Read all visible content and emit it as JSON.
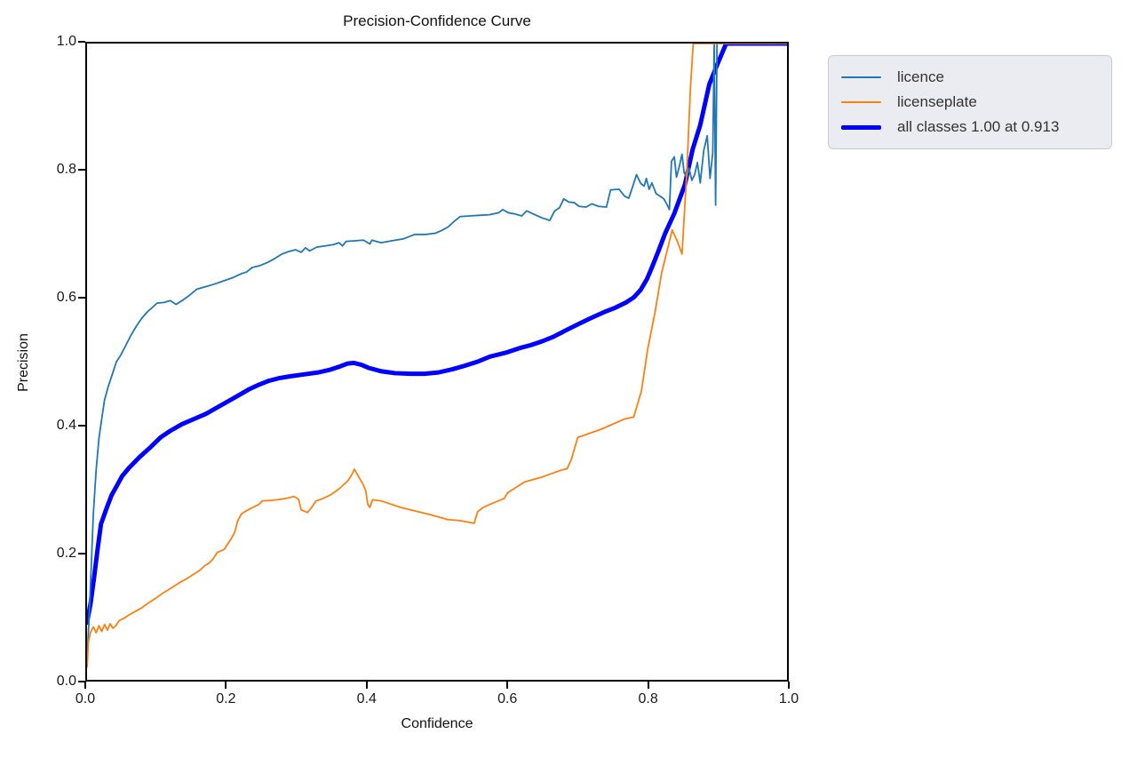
{
  "chart_data": {
    "type": "line",
    "title": "Precision-Confidence Curve",
    "xlabel": "Confidence",
    "ylabel": "Precision",
    "xlim": [
      0.0,
      1.0
    ],
    "ylim": [
      0.0,
      1.0
    ],
    "x_ticks": [
      0.0,
      0.2,
      0.4,
      0.6,
      0.8,
      1.0
    ],
    "y_ticks": [
      0.0,
      0.2,
      0.4,
      0.6,
      0.8,
      1.0
    ],
    "grid": false,
    "legend_position": "outside-top-right",
    "series": [
      {
        "name": "licence",
        "color": "#1f77b4",
        "width": 1.8,
        "points": [
          [
            0,
            0.03
          ],
          [
            0.003,
            0.1
          ],
          [
            0.006,
            0.18
          ],
          [
            0.009,
            0.26
          ],
          [
            0.013,
            0.33
          ],
          [
            0.017,
            0.38
          ],
          [
            0.021,
            0.41
          ],
          [
            0.025,
            0.44
          ],
          [
            0.03,
            0.46
          ],
          [
            0.036,
            0.48
          ],
          [
            0.042,
            0.5
          ],
          [
            0.048,
            0.51
          ],
          [
            0.055,
            0.525
          ],
          [
            0.062,
            0.54
          ],
          [
            0.07,
            0.555
          ],
          [
            0.078,
            0.568
          ],
          [
            0.086,
            0.578
          ],
          [
            0.093,
            0.585
          ],
          [
            0.1,
            0.592
          ],
          [
            0.11,
            0.593
          ],
          [
            0.119,
            0.596
          ],
          [
            0.127,
            0.59
          ],
          [
            0.136,
            0.596
          ],
          [
            0.146,
            0.604
          ],
          [
            0.157,
            0.614
          ],
          [
            0.17,
            0.618
          ],
          [
            0.182,
            0.622
          ],
          [
            0.195,
            0.627
          ],
          [
            0.208,
            0.632
          ],
          [
            0.22,
            0.638
          ],
          [
            0.228,
            0.641
          ],
          [
            0.236,
            0.648
          ],
          [
            0.247,
            0.651
          ],
          [
            0.258,
            0.656
          ],
          [
            0.268,
            0.662
          ],
          [
            0.278,
            0.669
          ],
          [
            0.288,
            0.673
          ],
          [
            0.298,
            0.676
          ],
          [
            0.306,
            0.672
          ],
          [
            0.312,
            0.679
          ],
          [
            0.318,
            0.674
          ],
          [
            0.328,
            0.68
          ],
          [
            0.34,
            0.682
          ],
          [
            0.352,
            0.684
          ],
          [
            0.36,
            0.687
          ],
          [
            0.365,
            0.682
          ],
          [
            0.37,
            0.689
          ],
          [
            0.382,
            0.69
          ],
          [
            0.395,
            0.691
          ],
          [
            0.404,
            0.685
          ],
          [
            0.407,
            0.691
          ],
          [
            0.42,
            0.687
          ],
          [
            0.435,
            0.69
          ],
          [
            0.452,
            0.693
          ],
          [
            0.468,
            0.7
          ],
          [
            0.484,
            0.7
          ],
          [
            0.498,
            0.702
          ],
          [
            0.508,
            0.707
          ],
          [
            0.516,
            0.712
          ],
          [
            0.524,
            0.72
          ],
          [
            0.533,
            0.728
          ],
          [
            0.546,
            0.729
          ],
          [
            0.56,
            0.73
          ],
          [
            0.575,
            0.731
          ],
          [
            0.588,
            0.734
          ],
          [
            0.594,
            0.739
          ],
          [
            0.602,
            0.734
          ],
          [
            0.612,
            0.732
          ],
          [
            0.621,
            0.729
          ],
          [
            0.628,
            0.737
          ],
          [
            0.638,
            0.732
          ],
          [
            0.65,
            0.726
          ],
          [
            0.661,
            0.722
          ],
          [
            0.668,
            0.737
          ],
          [
            0.675,
            0.742
          ],
          [
            0.681,
            0.756
          ],
          [
            0.688,
            0.751
          ],
          [
            0.696,
            0.75
          ],
          [
            0.703,
            0.744
          ],
          [
            0.713,
            0.743
          ],
          [
            0.721,
            0.748
          ],
          [
            0.731,
            0.744
          ],
          [
            0.742,
            0.743
          ],
          [
            0.748,
            0.77
          ],
          [
            0.76,
            0.771
          ],
          [
            0.768,
            0.76
          ],
          [
            0.774,
            0.757
          ],
          [
            0.78,
            0.777
          ],
          [
            0.785,
            0.794
          ],
          [
            0.791,
            0.78
          ],
          [
            0.796,
            0.776
          ],
          [
            0.799,
            0.788
          ],
          [
            0.803,
            0.771
          ],
          [
            0.807,
            0.781
          ],
          [
            0.813,
            0.764
          ],
          [
            0.819,
            0.76
          ],
          [
            0.824,
            0.756
          ],
          [
            0.829,
            0.746
          ],
          [
            0.832,
            0.739
          ],
          [
            0.835,
            0.815
          ],
          [
            0.839,
            0.822
          ],
          [
            0.842,
            0.79
          ],
          [
            0.846,
            0.806
          ],
          [
            0.85,
            0.826
          ],
          [
            0.853,
            0.797
          ],
          [
            0.857,
            0.79
          ],
          [
            0.86,
            0.804
          ],
          [
            0.864,
            0.785
          ],
          [
            0.868,
            0.794
          ],
          [
            0.872,
            0.813
          ],
          [
            0.876,
            0.781
          ],
          [
            0.881,
            0.832
          ],
          [
            0.886,
            0.855
          ],
          [
            0.89,
            0.788
          ],
          [
            0.894,
            0.829
          ],
          [
            0.896,
            1.0
          ],
          [
            0.898,
            0.746
          ],
          [
            0.9,
            1.0
          ],
          [
            1.0,
            1.0
          ]
        ]
      },
      {
        "name": "licenseplate",
        "color": "#ff7f0e",
        "width": 1.8,
        "points": [
          [
            0,
            0.02
          ],
          [
            0.002,
            0.06
          ],
          [
            0.005,
            0.075
          ],
          [
            0.009,
            0.083
          ],
          [
            0.013,
            0.074
          ],
          [
            0.017,
            0.085
          ],
          [
            0.021,
            0.076
          ],
          [
            0.025,
            0.087
          ],
          [
            0.029,
            0.078
          ],
          [
            0.033,
            0.088
          ],
          [
            0.037,
            0.081
          ],
          [
            0.041,
            0.085
          ],
          [
            0.046,
            0.093
          ],
          [
            0.053,
            0.097
          ],
          [
            0.06,
            0.102
          ],
          [
            0.068,
            0.107
          ],
          [
            0.078,
            0.113
          ],
          [
            0.088,
            0.121
          ],
          [
            0.098,
            0.128
          ],
          [
            0.108,
            0.136
          ],
          [
            0.12,
            0.144
          ],
          [
            0.131,
            0.152
          ],
          [
            0.141,
            0.158
          ],
          [
            0.151,
            0.165
          ],
          [
            0.161,
            0.172
          ],
          [
            0.169,
            0.18
          ],
          [
            0.174,
            0.183
          ],
          [
            0.18,
            0.19
          ],
          [
            0.186,
            0.2
          ],
          [
            0.196,
            0.205
          ],
          [
            0.206,
            0.222
          ],
          [
            0.211,
            0.232
          ],
          [
            0.215,
            0.249
          ],
          [
            0.22,
            0.26
          ],
          [
            0.225,
            0.264
          ],
          [
            0.235,
            0.27
          ],
          [
            0.246,
            0.276
          ],
          [
            0.25,
            0.281
          ],
          [
            0.262,
            0.282
          ],
          [
            0.272,
            0.283
          ],
          [
            0.284,
            0.285
          ],
          [
            0.296,
            0.288
          ],
          [
            0.302,
            0.284
          ],
          [
            0.306,
            0.267
          ],
          [
            0.315,
            0.263
          ],
          [
            0.321,
            0.271
          ],
          [
            0.327,
            0.281
          ],
          [
            0.335,
            0.284
          ],
          [
            0.347,
            0.29
          ],
          [
            0.359,
            0.299
          ],
          [
            0.372,
            0.312
          ],
          [
            0.378,
            0.322
          ],
          [
            0.382,
            0.331
          ],
          [
            0.388,
            0.319
          ],
          [
            0.394,
            0.308
          ],
          [
            0.398,
            0.298
          ],
          [
            0.401,
            0.276
          ],
          [
            0.404,
            0.271
          ],
          [
            0.408,
            0.283
          ],
          [
            0.421,
            0.281
          ],
          [
            0.448,
            0.271
          ],
          [
            0.47,
            0.265
          ],
          [
            0.492,
            0.259
          ],
          [
            0.515,
            0.252
          ],
          [
            0.534,
            0.25
          ],
          [
            0.553,
            0.246
          ],
          [
            0.558,
            0.264
          ],
          [
            0.566,
            0.271
          ],
          [
            0.576,
            0.276
          ],
          [
            0.596,
            0.285
          ],
          [
            0.601,
            0.294
          ],
          [
            0.625,
            0.311
          ],
          [
            0.651,
            0.319
          ],
          [
            0.676,
            0.329
          ],
          [
            0.686,
            0.332
          ],
          [
            0.692,
            0.347
          ],
          [
            0.701,
            0.381
          ],
          [
            0.704,
            0.382
          ],
          [
            0.735,
            0.394
          ],
          [
            0.768,
            0.41
          ],
          [
            0.781,
            0.413
          ],
          [
            0.792,
            0.454
          ],
          [
            0.801,
            0.52
          ],
          [
            0.811,
            0.575
          ],
          [
            0.821,
            0.64
          ],
          [
            0.836,
            0.707
          ],
          [
            0.843,
            0.69
          ],
          [
            0.85,
            0.669
          ],
          [
            0.857,
            0.8
          ],
          [
            0.862,
            0.93
          ],
          [
            0.866,
            1.0
          ],
          [
            1.0,
            1.0
          ]
        ]
      },
      {
        "name": "all classes 1.00 at 0.913",
        "color": "#0000ff",
        "width": 5,
        "points": [
          [
            0,
            0.09
          ],
          [
            0.005,
            0.12
          ],
          [
            0.01,
            0.16
          ],
          [
            0.015,
            0.205
          ],
          [
            0.02,
            0.245
          ],
          [
            0.028,
            0.27
          ],
          [
            0.035,
            0.29
          ],
          [
            0.043,
            0.306
          ],
          [
            0.05,
            0.32
          ],
          [
            0.06,
            0.333
          ],
          [
            0.075,
            0.35
          ],
          [
            0.09,
            0.365
          ],
          [
            0.105,
            0.381
          ],
          [
            0.12,
            0.392
          ],
          [
            0.136,
            0.402
          ],
          [
            0.155,
            0.411
          ],
          [
            0.17,
            0.418
          ],
          [
            0.186,
            0.428
          ],
          [
            0.202,
            0.438
          ],
          [
            0.218,
            0.448
          ],
          [
            0.232,
            0.457
          ],
          [
            0.246,
            0.464
          ],
          [
            0.26,
            0.47
          ],
          [
            0.274,
            0.474
          ],
          [
            0.29,
            0.477
          ],
          [
            0.31,
            0.48
          ],
          [
            0.33,
            0.483
          ],
          [
            0.346,
            0.487
          ],
          [
            0.36,
            0.492
          ],
          [
            0.372,
            0.497
          ],
          [
            0.381,
            0.498
          ],
          [
            0.392,
            0.495
          ],
          [
            0.403,
            0.49
          ],
          [
            0.42,
            0.485
          ],
          [
            0.44,
            0.482
          ],
          [
            0.462,
            0.481
          ],
          [
            0.482,
            0.481
          ],
          [
            0.502,
            0.483
          ],
          [
            0.522,
            0.488
          ],
          [
            0.541,
            0.494
          ],
          [
            0.558,
            0.5
          ],
          [
            0.576,
            0.508
          ],
          [
            0.598,
            0.514
          ],
          [
            0.62,
            0.522
          ],
          [
            0.634,
            0.526
          ],
          [
            0.65,
            0.532
          ],
          [
            0.666,
            0.539
          ],
          [
            0.682,
            0.548
          ],
          [
            0.7,
            0.558
          ],
          [
            0.719,
            0.568
          ],
          [
            0.739,
            0.578
          ],
          [
            0.755,
            0.585
          ],
          [
            0.77,
            0.593
          ],
          [
            0.781,
            0.601
          ],
          [
            0.791,
            0.613
          ],
          [
            0.8,
            0.63
          ],
          [
            0.807,
            0.648
          ],
          [
            0.816,
            0.673
          ],
          [
            0.826,
            0.702
          ],
          [
            0.839,
            0.733
          ],
          [
            0.854,
            0.778
          ],
          [
            0.865,
            0.833
          ],
          [
            0.876,
            0.872
          ],
          [
            0.889,
            0.936
          ],
          [
            0.9,
            0.966
          ],
          [
            0.913,
            1.0
          ],
          [
            1.0,
            1.0
          ]
        ]
      }
    ]
  },
  "legend": {
    "items": [
      {
        "label": "licence",
        "color": "#1f77b4",
        "thickness": 2
      },
      {
        "label": "licenseplate",
        "color": "#ff7f0e",
        "thickness": 2
      },
      {
        "label": "all classes 1.00 at 0.913",
        "color": "#0000ff",
        "thickness": 5
      }
    ]
  },
  "colors": {
    "background": "#ffffff",
    "spine": "#000000",
    "legend_background": "#ebebf2",
    "legend_border": "#c9c9d4",
    "text": "#1a1a1a"
  }
}
